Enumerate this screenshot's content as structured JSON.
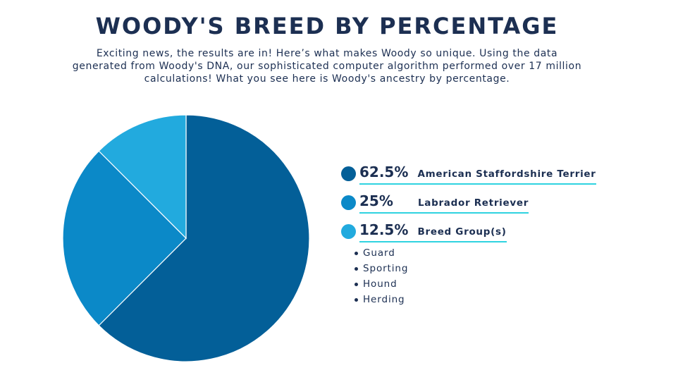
{
  "title": "WOODY'S BREED BY PERCENTAGE",
  "intro_lines": [
    "Exciting news, the results are in! Here’s what makes Woody so unique. Using the data",
    "generated from Woody's DNA, our sophisticated computer algorithm performed over 17 million",
    "calculations! What you see here is Woody's ancestry by percentage."
  ],
  "legend": [
    {
      "percent_label": "62.5%",
      "breed": "American Staffordshire Terrier"
    },
    {
      "percent_label": "25%",
      "breed": "Labrador Retriever"
    },
    {
      "percent_label": "12.5%",
      "breed": "Breed Group(s)"
    }
  ],
  "breed_groups": [
    "Guard",
    "Sporting",
    "Hound",
    "Herding"
  ],
  "chart_data": {
    "type": "pie",
    "categories": [
      "American Staffordshire Terrier",
      "Labrador Retriever",
      "Breed Group(s)"
    ],
    "values": [
      62.5,
      25,
      12.5
    ],
    "colors": [
      "#035f98",
      "#0b89c8",
      "#22aade"
    ],
    "start": "12 o'clock",
    "direction": "clockwise"
  },
  "colors": {
    "title": "#1c2f52",
    "underline": "#2fd3e0",
    "slice_separator": "#ffffff"
  }
}
